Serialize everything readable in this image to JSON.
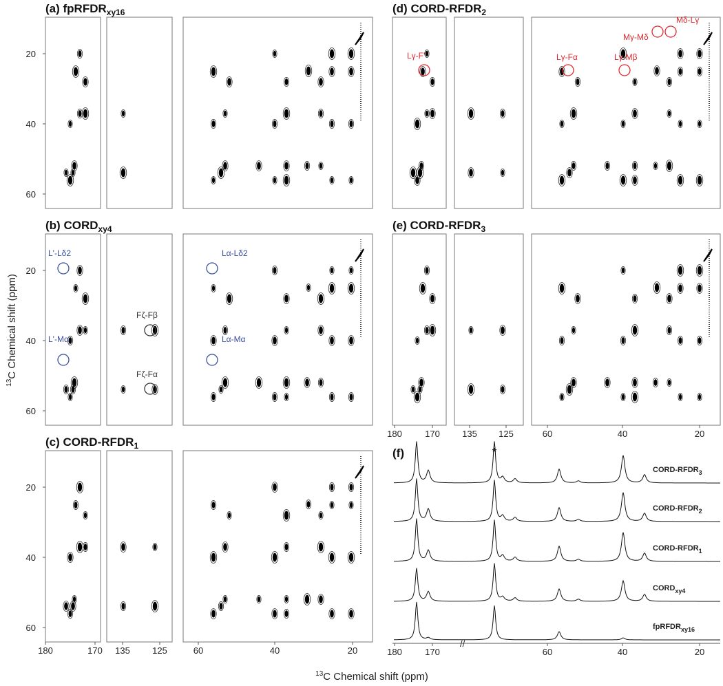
{
  "axis_label": {
    "sup": "13",
    "text": "C Chemical shift (ppm)"
  },
  "yticks": [
    20,
    40,
    60
  ],
  "xticks": [
    [
      180,
      170
    ],
    [
      135,
      125
    ],
    [
      60,
      40,
      20
    ]
  ],
  "panels": [
    {
      "label": "(a)",
      "title": "fpRFDR",
      "sub": "xy16"
    },
    {
      "label": "(b)",
      "title": "CORD",
      "sub": "xy4",
      "annotations": [
        {
          "text": "L'-Lδ2",
          "color": "#3a4fa0"
        },
        {
          "text": "L'-Mα",
          "color": "#3a4fa0"
        },
        {
          "text": "Lα-Lδ2",
          "color": "#3a4fa0"
        },
        {
          "text": "Lα-Mα",
          "color": "#3a4fa0"
        },
        {
          "text": "Fζ-Fβ",
          "color": "#333333"
        },
        {
          "text": "Fζ-Fα",
          "color": "#333333"
        }
      ]
    },
    {
      "label": "(c)",
      "title": "CORD-RFDR",
      "sub": "1"
    },
    {
      "label": "(d)",
      "title": "CORD-RFDR",
      "sub": "2",
      "annotations": [
        {
          "text": "Lγ-F'",
          "color": "#e0282e"
        },
        {
          "text": "Lγ-Fα",
          "color": "#e0282e"
        },
        {
          "text": "Lγ-Mβ",
          "color": "#e0282e"
        },
        {
          "text": "Mγ-Mδ",
          "color": "#e0282e"
        },
        {
          "text": "Mδ-Lγ",
          "color": "#e0282e"
        }
      ]
    },
    {
      "label": "(e)",
      "title": "CORD-RFDR",
      "sub": "3"
    }
  ],
  "spectra": {
    "label": "(f)",
    "star": "*",
    "traces": [
      {
        "title": "CORD-RFDR",
        "sub": "3"
      },
      {
        "title": "CORD-RFDR",
        "sub": "2"
      },
      {
        "title": "CORD-RFDR",
        "sub": "1"
      },
      {
        "title": "CORD",
        "sub": "xy4"
      },
      {
        "title": "fpRFDR",
        "sub": "xy16"
      }
    ]
  }
}
